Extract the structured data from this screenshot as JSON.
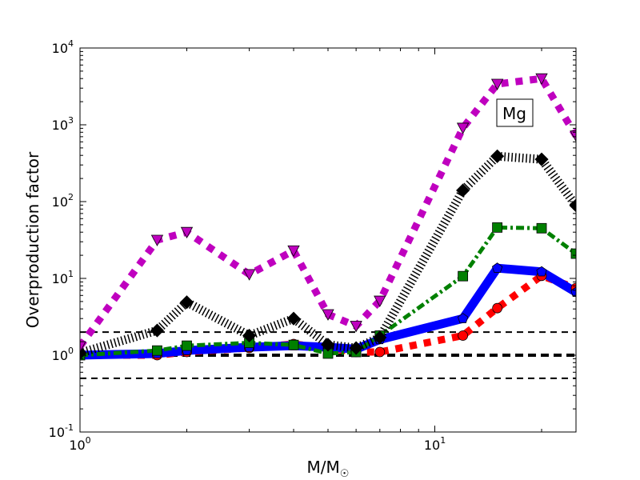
{
  "chart_data": {
    "type": "line",
    "title": "",
    "annotation": "Mg",
    "xlabel": "M/M",
    "xlabel_sub": "☉",
    "ylabel": "Overproduction factor",
    "xscale": "log",
    "yscale": "log",
    "xlim": [
      1,
      25
    ],
    "ylim": [
      0.1,
      10000
    ],
    "x_ticks": [
      {
        "base": "10",
        "exp": "0",
        "value": 1
      },
      {
        "base": "10",
        "exp": "1",
        "value": 10
      }
    ],
    "y_ticks": [
      {
        "base": "10",
        "exp": "-1",
        "value": 0.1
      },
      {
        "base": "10",
        "exp": "0",
        "value": 1
      },
      {
        "base": "10",
        "exp": "1",
        "value": 10
      },
      {
        "base": "10",
        "exp": "2",
        "value": 100
      },
      {
        "base": "10",
        "exp": "3",
        "value": 1000
      },
      {
        "base": "10",
        "exp": "4",
        "value": 10000
      }
    ],
    "reference_lines": [
      0.5,
      1,
      2
    ],
    "x": [
      1,
      1.65,
      2,
      3,
      4,
      5,
      6,
      7,
      12,
      15,
      20,
      25
    ],
    "series": [
      {
        "name": "red-circles",
        "color": "#ff0000",
        "marker": "circle",
        "values": [
          1.0,
          1.0,
          1.1,
          1.24,
          1.4,
          1.24,
          1.1,
          1.1,
          1.8,
          4.1,
          10.8,
          7.5
        ]
      },
      {
        "name": "blue-pentagons",
        "color": "#0000ff",
        "marker": "pentagon",
        "values": [
          1.0,
          1.05,
          1.15,
          1.27,
          1.33,
          1.27,
          1.2,
          1.6,
          3.0,
          13.6,
          12.2,
          6.6
        ]
      },
      {
        "name": "green-squares",
        "color": "#008000",
        "marker": "square",
        "values": [
          1.0,
          1.15,
          1.33,
          1.45,
          1.36,
          1.05,
          1.1,
          1.8,
          10.7,
          46,
          45,
          21
        ]
      },
      {
        "name": "black-diamonds",
        "color": "#000000",
        "marker": "diamond",
        "values": [
          1.07,
          2.1,
          4.9,
          1.8,
          3.0,
          1.37,
          1.24,
          1.7,
          140,
          390,
          355,
          89
        ]
      },
      {
        "name": "magenta-triangles",
        "color": "#bf00bf",
        "marker": "triangle-down",
        "values": [
          1.3,
          31.6,
          40,
          11.3,
          23,
          3.4,
          2.4,
          5.1,
          910,
          3400,
          4000,
          720
        ]
      }
    ]
  }
}
